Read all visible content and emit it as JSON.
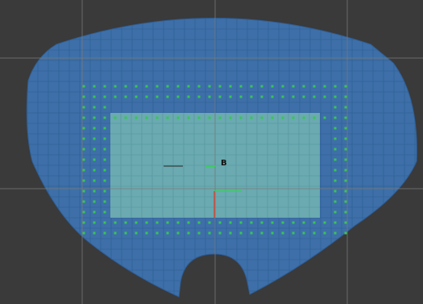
{
  "scene": {
    "marker_label": "B",
    "colors": {
      "background": "#3a3a3a",
      "floor": "#3e6fa8",
      "floor_edge": "#2f5f98",
      "zone": "#6aaab0",
      "fine_grid": "#2c5f93",
      "major_grid": "#7a7a7a",
      "dot": "#37c653",
      "axis_x": "#2fd64e",
      "axis_y": "#d04a3a",
      "marker_text": "#111111"
    },
    "icons": {
      "marker": "anchor-marker-icon",
      "gizmo": "transform-gizmo-icon"
    }
  }
}
